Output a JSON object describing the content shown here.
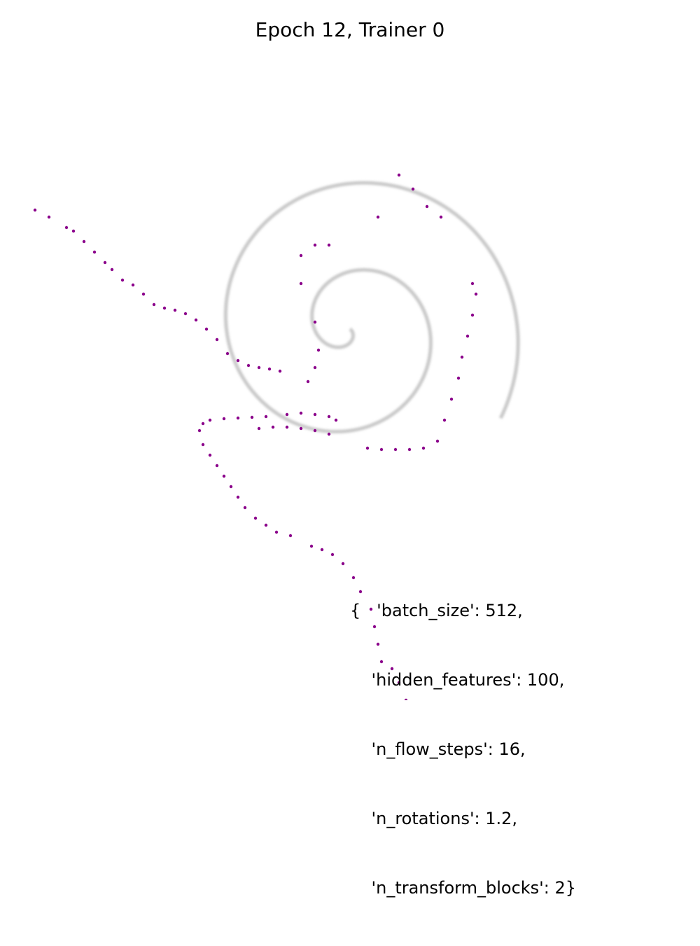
{
  "chart_data": {
    "type": "scatter",
    "title": "Epoch 12, Trainer 0",
    "xlabel": "",
    "ylabel": "",
    "axes_visible": false,
    "grid": false,
    "xlim": [
      -5,
      5
    ],
    "ylim": [
      -5,
      5
    ],
    "colors": {
      "target": "#9a9a9a",
      "samples": "#8b008b"
    },
    "target_distribution": {
      "shape": "spiral",
      "color": "#9a9a9a",
      "center": [
        0.0,
        0.3
      ],
      "theta_range": [
        0.0,
        12.5
      ],
      "radius_scale": 0.2
    },
    "samples": {
      "color": "#8b008b",
      "points": [
        [
          -4.5,
          2.0
        ],
        [
          -4.3,
          1.9
        ],
        [
          -4.05,
          1.75
        ],
        [
          -3.95,
          1.7
        ],
        [
          -3.8,
          1.55
        ],
        [
          -3.65,
          1.4
        ],
        [
          -3.5,
          1.25
        ],
        [
          -3.4,
          1.15
        ],
        [
          -3.25,
          1.0
        ],
        [
          -3.1,
          0.93
        ],
        [
          -2.95,
          0.8
        ],
        [
          -2.8,
          0.65
        ],
        [
          -2.65,
          0.6
        ],
        [
          -2.5,
          0.57
        ],
        [
          -2.35,
          0.52
        ],
        [
          -2.2,
          0.43
        ],
        [
          -2.05,
          0.3
        ],
        [
          -1.9,
          0.15
        ],
        [
          -1.75,
          -0.05
        ],
        [
          -1.6,
          -0.15
        ],
        [
          -1.45,
          -0.22
        ],
        [
          -1.3,
          -0.25
        ],
        [
          -1.15,
          -0.27
        ],
        [
          -1.0,
          -0.3
        ],
        [
          -2.1,
          -1.05
        ],
        [
          -2.0,
          -1.0
        ],
        [
          -1.8,
          -0.98
        ],
        [
          -1.6,
          -0.97
        ],
        [
          -1.4,
          -0.96
        ],
        [
          -1.2,
          -0.95
        ],
        [
          -0.9,
          -0.92
        ],
        [
          -0.7,
          -0.9
        ],
        [
          -0.5,
          -0.92
        ],
        [
          -0.3,
          -0.95
        ],
        [
          -0.2,
          -1.0
        ],
        [
          -1.3,
          -1.12
        ],
        [
          -1.1,
          -1.1
        ],
        [
          -0.9,
          -1.1
        ],
        [
          -0.7,
          -1.12
        ],
        [
          -0.5,
          -1.15
        ],
        [
          -0.3,
          -1.2
        ],
        [
          -2.15,
          -1.15
        ],
        [
          -2.1,
          -1.35
        ],
        [
          -2.0,
          -1.5
        ],
        [
          -1.9,
          -1.65
        ],
        [
          -1.8,
          -1.8
        ],
        [
          -1.7,
          -1.95
        ],
        [
          -1.6,
          -2.1
        ],
        [
          -1.5,
          -2.25
        ],
        [
          -1.35,
          -2.4
        ],
        [
          -1.2,
          -2.5
        ],
        [
          -1.05,
          -2.6
        ],
        [
          -0.85,
          -2.65
        ],
        [
          -0.55,
          -2.8
        ],
        [
          -0.4,
          -2.85
        ],
        [
          -0.25,
          -2.92
        ],
        [
          -0.1,
          -3.05
        ],
        [
          0.05,
          -3.25
        ],
        [
          0.15,
          -3.45
        ],
        [
          0.3,
          -3.7
        ],
        [
          0.35,
          -3.95
        ],
        [
          0.4,
          -4.2
        ],
        [
          0.45,
          -4.45
        ],
        [
          0.6,
          -4.55
        ],
        [
          0.7,
          -4.75
        ],
        [
          0.8,
          -5.0
        ],
        [
          0.25,
          -1.4
        ],
        [
          0.45,
          -1.42
        ],
        [
          0.65,
          -1.42
        ],
        [
          0.85,
          -1.42
        ],
        [
          1.05,
          -1.4
        ],
        [
          1.25,
          -1.3
        ],
        [
          1.35,
          -1.0
        ],
        [
          1.45,
          -0.7
        ],
        [
          1.55,
          -0.4
        ],
        [
          1.6,
          -0.1
        ],
        [
          1.68,
          0.2
        ],
        [
          1.75,
          0.5
        ],
        [
          1.8,
          0.8
        ],
        [
          1.75,
          0.95
        ],
        [
          0.7,
          2.5
        ],
        [
          0.9,
          2.3
        ],
        [
          1.1,
          2.05
        ],
        [
          1.3,
          1.9
        ],
        [
          -0.7,
          1.35
        ],
        [
          -0.5,
          1.5
        ],
        [
          -0.3,
          1.5
        ],
        [
          -0.7,
          0.95
        ],
        [
          -0.5,
          0.4
        ],
        [
          -0.45,
          0.0
        ],
        [
          -0.5,
          -0.25
        ],
        [
          -0.6,
          -0.45
        ],
        [
          0.4,
          1.9
        ]
      ]
    }
  },
  "params_text": {
    "lines": [
      "{   'batch_size': 512,",
      "    'hidden_features': 100,",
      "    'n_flow_steps': 16,",
      "    'n_rotations': 1.2,",
      "    'n_transform_blocks': 2}"
    ]
  }
}
